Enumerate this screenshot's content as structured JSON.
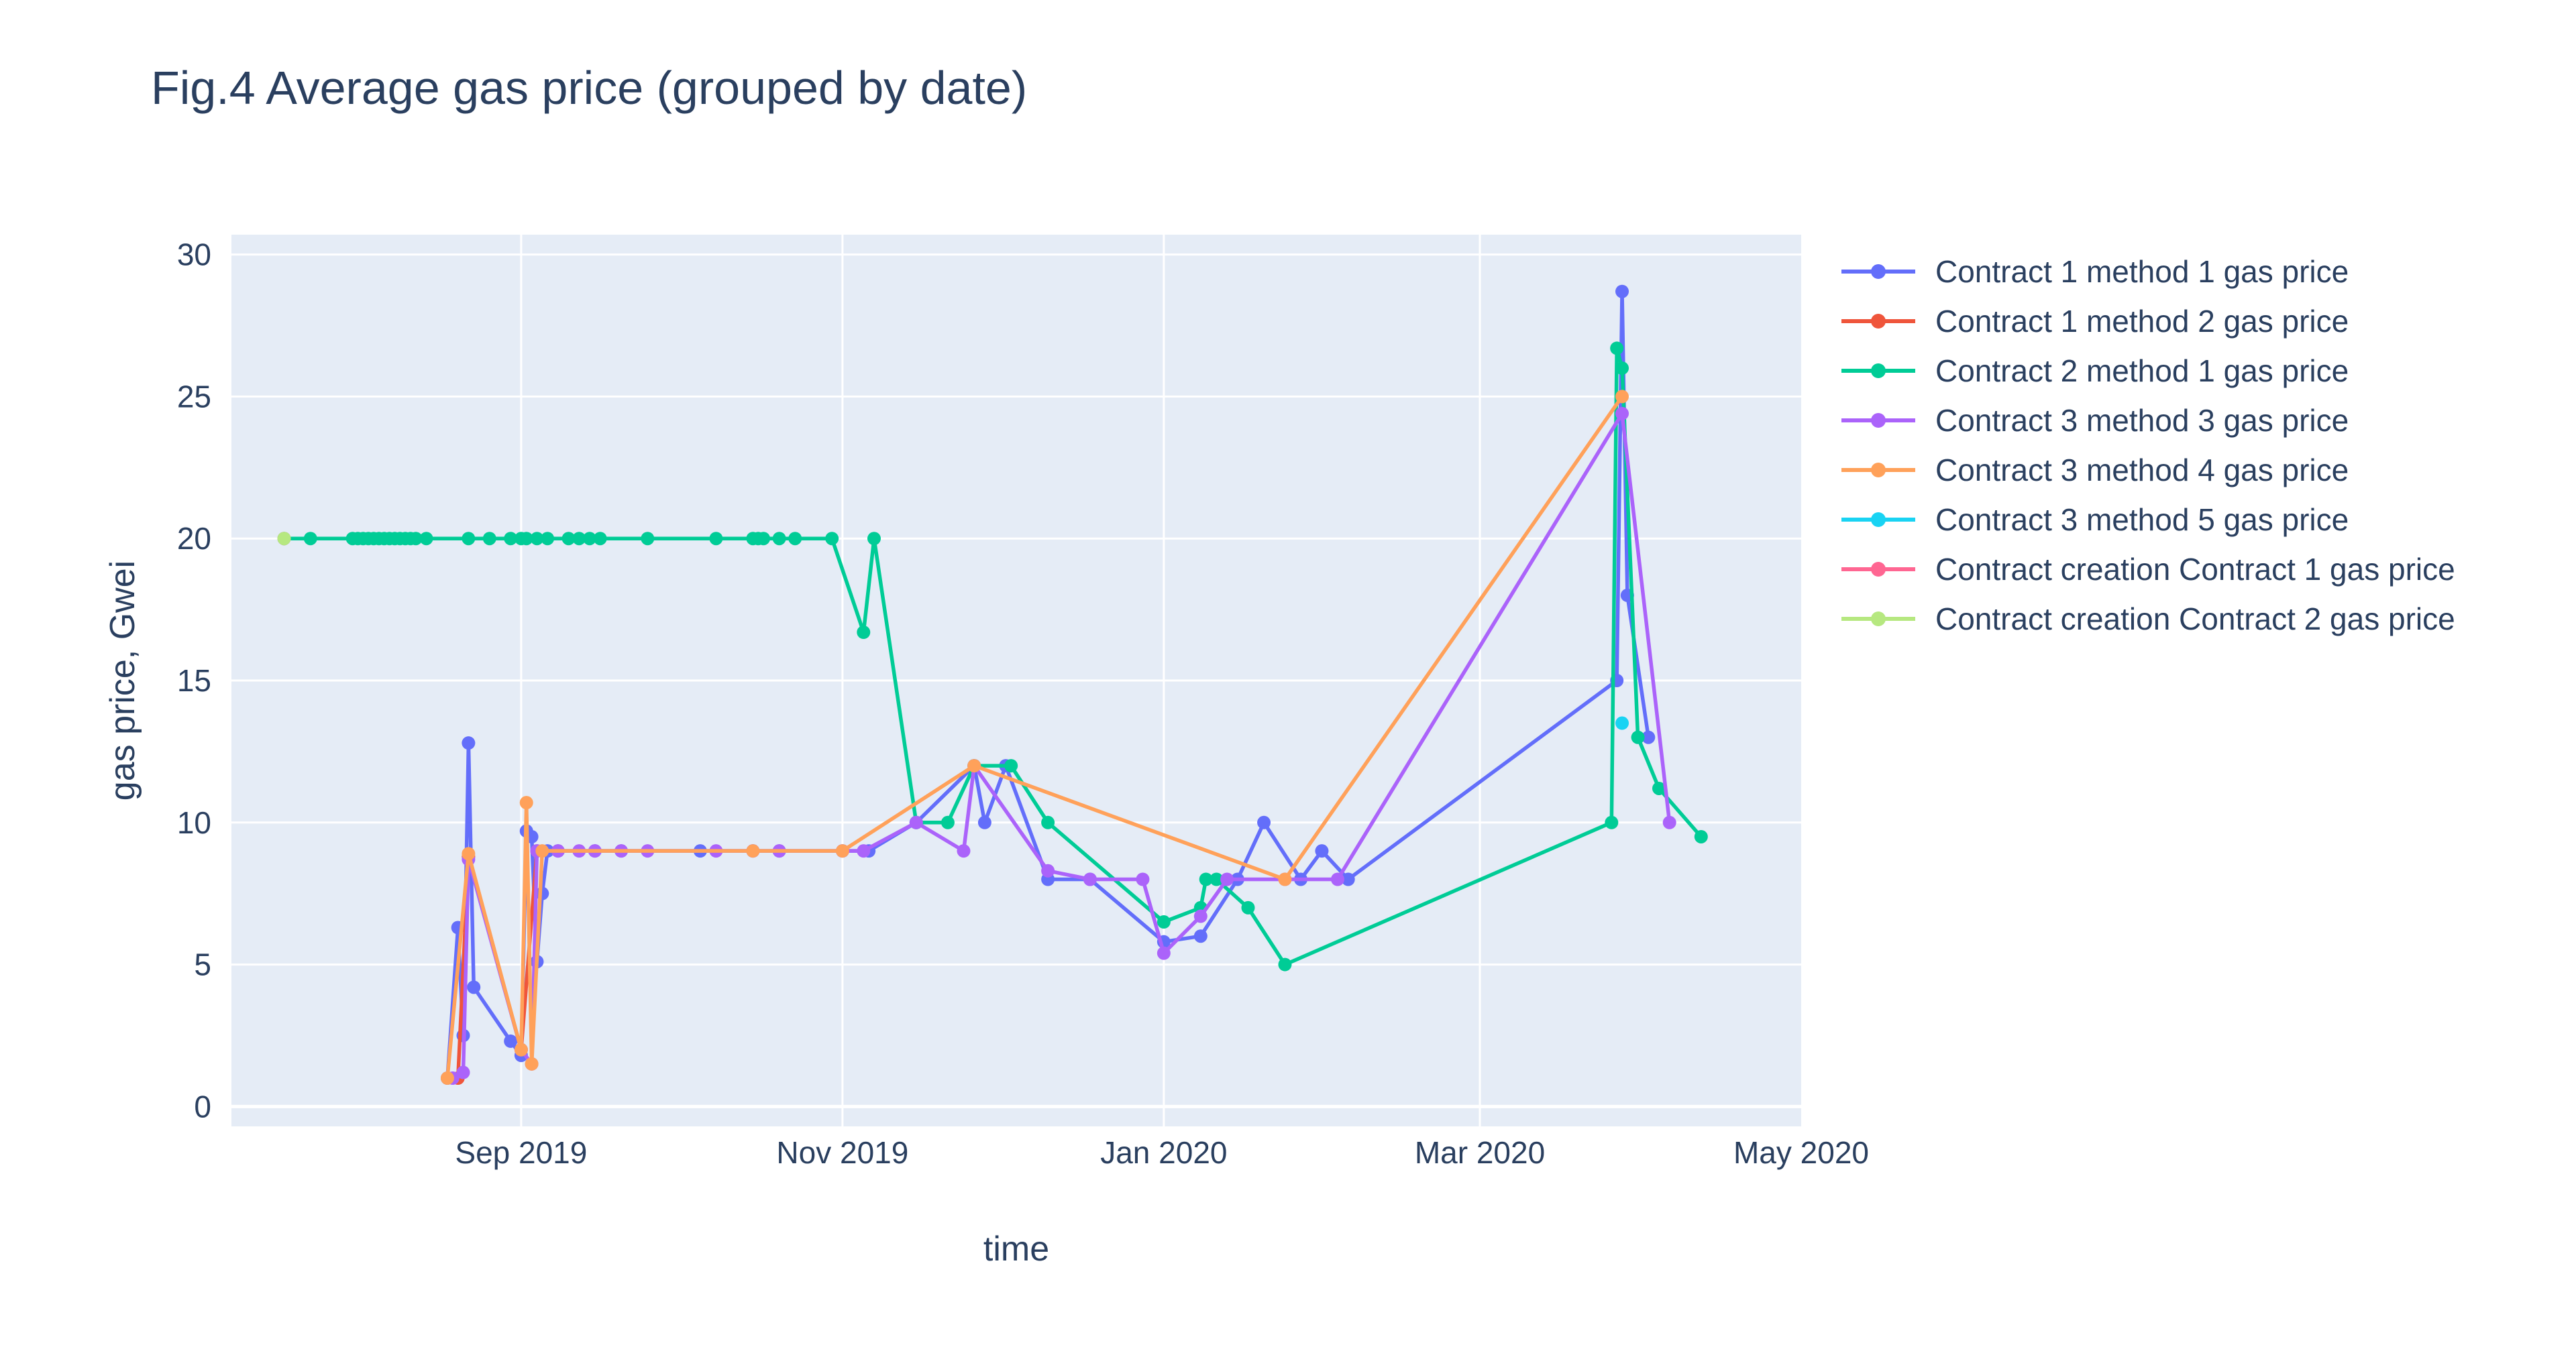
{
  "chart_data": {
    "type": "line",
    "title": "Fig.4 Average gas price (grouped by date)",
    "xlabel": "time",
    "ylabel": "gas price, Gwei",
    "xlim": [
      "2019-07-08",
      "2020-05-01"
    ],
    "ylim": [
      -0.7,
      30.7
    ],
    "x_ticks": [
      {
        "date": "2019-09-01",
        "label": "Sep 2019"
      },
      {
        "date": "2019-11-01",
        "label": "Nov 2019"
      },
      {
        "date": "2020-01-01",
        "label": "Jan 2020"
      },
      {
        "date": "2020-03-01",
        "label": "Mar 2020"
      },
      {
        "date": "2020-05-01",
        "label": "May 2020"
      }
    ],
    "y_ticks": [
      0,
      5,
      10,
      15,
      20,
      25,
      30
    ],
    "grid": true,
    "legend_position": "right",
    "series": [
      {
        "name": "Contract 1 method 1 gas price",
        "color": "#636efa",
        "points": [
          [
            "2019-08-18",
            1.0
          ],
          [
            "2019-08-20",
            6.3
          ],
          [
            "2019-08-21",
            2.5
          ],
          [
            "2019-08-22",
            12.8
          ],
          [
            "2019-08-23",
            4.2
          ],
          [
            "2019-08-30",
            2.3
          ],
          [
            "2019-09-01",
            1.8
          ],
          [
            "2019-09-02",
            9.7
          ],
          [
            "2019-09-03",
            9.5
          ],
          [
            "2019-09-04",
            5.1
          ],
          [
            "2019-09-05",
            7.5
          ],
          [
            "2019-09-06",
            9.0
          ],
          [
            "2019-09-08",
            9.0
          ],
          [
            "2019-09-15",
            9.0
          ],
          [
            "2019-09-20",
            9.0
          ],
          [
            "2019-10-05",
            9.0
          ],
          [
            "2019-10-15",
            9.0
          ],
          [
            "2019-10-20",
            9.0
          ],
          [
            "2019-11-01",
            9.0
          ],
          [
            "2019-11-06",
            9.0
          ],
          [
            "2019-11-15",
            10.0
          ],
          [
            "2019-11-26",
            12.0
          ],
          [
            "2019-11-28",
            10.0
          ],
          [
            "2019-12-02",
            12.0
          ],
          [
            "2019-12-10",
            8.0
          ],
          [
            "2019-12-18",
            8.0
          ],
          [
            "2020-01-01",
            5.8
          ],
          [
            "2020-01-08",
            6.0
          ],
          [
            "2020-01-15",
            8.0
          ],
          [
            "2020-01-20",
            10.0
          ],
          [
            "2020-01-27",
            8.0
          ],
          [
            "2020-01-31",
            9.0
          ],
          [
            "2020-02-05",
            8.0
          ],
          [
            "2020-03-27",
            15.0
          ],
          [
            "2020-03-28",
            28.7
          ],
          [
            "2020-03-29",
            18.0
          ],
          [
            "2020-04-02",
            13.0
          ]
        ]
      },
      {
        "name": "Contract 1 method 2 gas price",
        "color": "#ef553b",
        "points": [
          [
            "2019-08-20",
            1.0
          ],
          [
            "2019-08-22",
            8.8
          ],
          [
            "2019-09-01",
            2.0
          ],
          [
            "2019-09-04",
            9.0
          ]
        ]
      },
      {
        "name": "Contract 2 method 1 gas price",
        "color": "#00cc96",
        "points": [
          [
            "2019-07-18",
            20.0
          ],
          [
            "2019-07-23",
            20.0
          ],
          [
            "2019-07-31",
            20.0
          ],
          [
            "2019-08-01",
            20.0
          ],
          [
            "2019-08-02",
            20.0
          ],
          [
            "2019-08-03",
            20.0
          ],
          [
            "2019-08-04",
            20.0
          ],
          [
            "2019-08-05",
            20.0
          ],
          [
            "2019-08-06",
            20.0
          ],
          [
            "2019-08-07",
            20.0
          ],
          [
            "2019-08-08",
            20.0
          ],
          [
            "2019-08-09",
            20.0
          ],
          [
            "2019-08-10",
            20.0
          ],
          [
            "2019-08-11",
            20.0
          ],
          [
            "2019-08-12",
            20.0
          ],
          [
            "2019-08-14",
            20.0
          ],
          [
            "2019-08-22",
            20.0
          ],
          [
            "2019-08-26",
            20.0
          ],
          [
            "2019-08-30",
            20.0
          ],
          [
            "2019-09-01",
            20.0
          ],
          [
            "2019-09-02",
            20.0
          ],
          [
            "2019-09-04",
            20.0
          ],
          [
            "2019-09-06",
            20.0
          ],
          [
            "2019-09-10",
            20.0
          ],
          [
            "2019-09-12",
            20.0
          ],
          [
            "2019-09-14",
            20.0
          ],
          [
            "2019-09-16",
            20.0
          ],
          [
            "2019-09-25",
            20.0
          ],
          [
            "2019-10-08",
            20.0
          ],
          [
            "2019-10-15",
            20.0
          ],
          [
            "2019-10-16",
            20.0
          ],
          [
            "2019-10-17",
            20.0
          ],
          [
            "2019-10-20",
            20.0
          ],
          [
            "2019-10-23",
            20.0
          ],
          [
            "2019-10-30",
            20.0
          ],
          [
            "2019-11-05",
            16.7
          ],
          [
            "2019-11-07",
            20.0
          ],
          [
            "2019-11-15",
            10.0
          ],
          [
            "2019-11-21",
            10.0
          ],
          [
            "2019-11-26",
            12.0
          ],
          [
            "2019-12-03",
            12.0
          ],
          [
            "2019-12-10",
            10.0
          ],
          [
            "2020-01-01",
            6.5
          ],
          [
            "2020-01-08",
            7.0
          ],
          [
            "2020-01-09",
            8.0
          ],
          [
            "2020-01-11",
            8.0
          ],
          [
            "2020-01-17",
            7.0
          ],
          [
            "2020-01-24",
            5.0
          ],
          [
            "2020-03-26",
            10.0
          ],
          [
            "2020-03-27",
            26.7
          ],
          [
            "2020-03-28",
            26.0
          ],
          [
            "2020-03-31",
            13.0
          ],
          [
            "2020-04-04",
            11.2
          ],
          [
            "2020-04-12",
            9.5
          ]
        ]
      },
      {
        "name": "Contract 3 method 3 gas price",
        "color": "#ab63fa",
        "points": [
          [
            "2019-08-19",
            1.0
          ],
          [
            "2019-08-21",
            1.2
          ],
          [
            "2019-08-22",
            8.7
          ],
          [
            "2019-09-01",
            2.0
          ],
          [
            "2019-09-03",
            1.5
          ],
          [
            "2019-09-04",
            9.0
          ],
          [
            "2019-09-08",
            9.0
          ],
          [
            "2019-09-12",
            9.0
          ],
          [
            "2019-09-15",
            9.0
          ],
          [
            "2019-09-20",
            9.0
          ],
          [
            "2019-09-25",
            9.0
          ],
          [
            "2019-10-08",
            9.0
          ],
          [
            "2019-10-15",
            9.0
          ],
          [
            "2019-10-20",
            9.0
          ],
          [
            "2019-11-01",
            9.0
          ],
          [
            "2019-11-05",
            9.0
          ],
          [
            "2019-11-15",
            10.0
          ],
          [
            "2019-11-24",
            9.0
          ],
          [
            "2019-11-26",
            12.0
          ],
          [
            "2019-12-10",
            8.3
          ],
          [
            "2019-12-18",
            8.0
          ],
          [
            "2019-12-28",
            8.0
          ],
          [
            "2020-01-01",
            5.4
          ],
          [
            "2020-01-08",
            6.7
          ],
          [
            "2020-01-13",
            8.0
          ],
          [
            "2020-01-24",
            8.0
          ],
          [
            "2020-02-03",
            8.0
          ],
          [
            "2020-03-28",
            24.4
          ],
          [
            "2020-04-06",
            10.0
          ]
        ]
      },
      {
        "name": "Contract 3 method 4 gas price",
        "color": "#ffa15a",
        "points": [
          [
            "2019-08-18",
            1.0
          ],
          [
            "2019-08-22",
            8.9
          ],
          [
            "2019-09-01",
            2.0
          ],
          [
            "2019-09-02",
            10.7
          ],
          [
            "2019-09-03",
            1.5
          ],
          [
            "2019-09-05",
            9.0
          ],
          [
            "2019-10-15",
            9.0
          ],
          [
            "2019-11-01",
            9.0
          ],
          [
            "2019-11-26",
            12.0
          ],
          [
            "2020-01-24",
            8.0
          ],
          [
            "2020-03-28",
            25.0
          ]
        ]
      },
      {
        "name": "Contract 3 method 5 gas price",
        "color": "#19d3f3",
        "points": [
          [
            "2020-03-28",
            13.5
          ]
        ]
      },
      {
        "name": "Contract creation Contract 1 gas price",
        "color": "#ff6692",
        "points": [
          [
            "2019-07-18",
            20.0
          ]
        ]
      },
      {
        "name": "Contract creation Contract 2 gas price",
        "color": "#b6e880",
        "points": [
          [
            "2019-07-18",
            20.0
          ]
        ]
      }
    ]
  }
}
